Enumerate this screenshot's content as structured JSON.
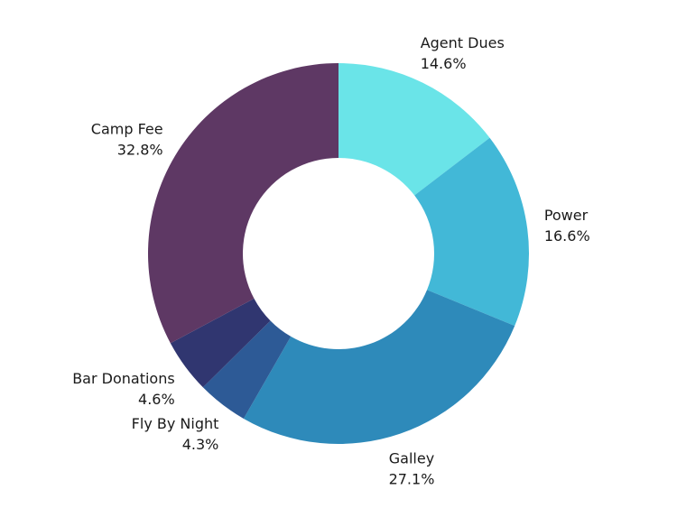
{
  "chart_data": {
    "type": "pie",
    "style": "donut",
    "title": "",
    "slices": [
      {
        "label": "Agent Dues",
        "value": 14.6,
        "value_label": "14.6%",
        "color": "#6AE4E8"
      },
      {
        "label": "Power",
        "value": 16.6,
        "value_label": "16.6%",
        "color": "#42B8D7"
      },
      {
        "label": "Galley",
        "value": 27.1,
        "value_label": "27.1%",
        "color": "#2E8ABA"
      },
      {
        "label": "Fly By Night",
        "value": 4.3,
        "value_label": "4.3%",
        "color": "#2D5A96"
      },
      {
        "label": "Bar Donations",
        "value": 4.6,
        "value_label": "4.6%",
        "color": "#303670"
      },
      {
        "label": "Camp Fee",
        "value": 32.8,
        "value_label": "32.8%",
        "color": "#5E3864"
      }
    ],
    "legend": "none"
  }
}
